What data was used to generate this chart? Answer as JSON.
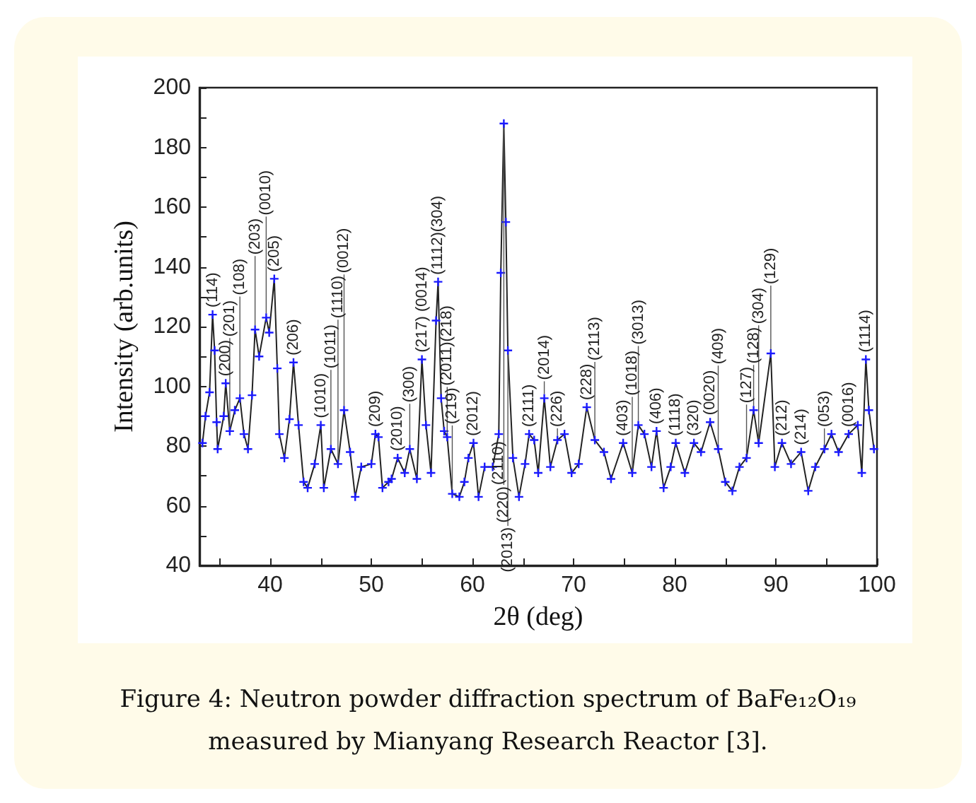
{
  "chart_data": {
    "type": "line",
    "xlabel": "2θ (deg)",
    "ylabel": "Intensity (arb.units)",
    "xlim": [
      33,
      100
    ],
    "ylim": [
      40,
      200
    ],
    "xticks": [
      {
        "value": 35,
        "label": null
      },
      40,
      {
        "value": 45,
        "label": null
      },
      50,
      {
        "value": 55,
        "label": null
      },
      60,
      {
        "value": 65,
        "label": null
      },
      70,
      {
        "value": 75,
        "label": null
      },
      80,
      {
        "value": 85,
        "label": null
      },
      90,
      {
        "value": 95,
        "label": null
      },
      100
    ],
    "yticks": [
      40,
      {
        "value": 50,
        "label": null
      },
      60,
      {
        "value": 70,
        "label": null
      },
      80,
      {
        "value": 90,
        "label": null
      },
      100,
      {
        "value": 110,
        "label": null
      },
      120,
      {
        "value": 130,
        "label": null
      },
      140,
      {
        "value": 150,
        "label": null
      },
      160,
      {
        "value": 170,
        "label": null
      },
      180,
      {
        "value": 190,
        "label": null
      },
      200
    ],
    "grid": false,
    "marker": "cross",
    "line_style": "solid",
    "series": [
      {
        "color": "#1a1aff",
        "x": [
          33.3,
          33.6,
          34.0,
          34.3,
          34.5,
          34.7,
          34.8,
          35.4,
          35.6,
          36.0,
          36.5,
          37.0,
          37.4,
          37.8,
          38.2,
          38.5,
          38.9,
          39.6,
          39.9,
          40.4,
          40.7,
          40.9,
          41.4,
          41.9,
          42.3,
          42.8,
          43.3,
          43.7,
          44.4,
          45.0,
          45.3,
          46.0,
          46.7,
          47.3,
          47.9,
          48.4,
          49.0,
          50.0,
          50.4,
          50.7,
          51.1,
          51.7,
          52.0,
          52.6,
          53.3,
          53.8,
          54.5,
          55.0,
          55.4,
          55.9,
          56.4,
          56.6,
          56.9,
          57.2,
          57.5,
          58.0,
          58.7,
          59.2,
          59.6,
          60.1,
          60.6,
          61.2,
          62.0,
          62.6,
          62.8,
          63.1,
          63.3,
          63.5,
          64.0,
          64.6,
          65.2,
          65.6,
          66.1,
          66.5,
          67.1,
          67.7,
          68.4,
          69.1,
          69.8,
          70.5,
          71.3,
          72.1,
          73.0,
          73.7,
          74.9,
          75.8,
          76.4,
          77.0,
          77.7,
          78.2,
          78.9,
          79.6,
          80.1,
          81.0,
          81.9,
          82.6,
          83.5,
          84.3,
          85.0,
          85.7,
          86.4,
          87.1,
          87.8,
          88.3,
          89.5,
          89.9,
          90.6,
          91.5,
          92.5,
          93.2,
          93.9,
          94.8,
          95.5,
          96.2,
          97.2,
          98.1,
          98.5,
          98.9,
          99.2,
          99.7
        ],
        "values": [
          81,
          90,
          98,
          124,
          112,
          88,
          79,
          90,
          101,
          85,
          92,
          96,
          84,
          79,
          97,
          119,
          110,
          123,
          118,
          136,
          106,
          84,
          76,
          89,
          108,
          87,
          68,
          66,
          74,
          87,
          66,
          79,
          74,
          92,
          78,
          63,
          73,
          74,
          84,
          83,
          66,
          68,
          69,
          76,
          71,
          79,
          69,
          109,
          87,
          71,
          122,
          135,
          96,
          85,
          83,
          64,
          63,
          68,
          76,
          81,
          63,
          73,
          73,
          84,
          138,
          188,
          155,
          112,
          76,
          63,
          74,
          84,
          82,
          71,
          96,
          73,
          82,
          84,
          71,
          74,
          93,
          82,
          78,
          69,
          81,
          71,
          87,
          84,
          73,
          85,
          66,
          73,
          81,
          71,
          81,
          78,
          88,
          79,
          68,
          65,
          73,
          76,
          92,
          81,
          111,
          73,
          81,
          74,
          78,
          65,
          73,
          79,
          84,
          78,
          84,
          87,
          71,
          109,
          92,
          79
        ]
      }
    ],
    "annotations": [
      {
        "text": "(114)",
        "x": 34.3,
        "y": 124
      },
      {
        "text": "(200)",
        "x": 35.6,
        "y": 101
      },
      {
        "text": "(201)",
        "x": 36.0,
        "y": 85
      },
      {
        "text": "(108)",
        "x": 37.0,
        "y": 96
      },
      {
        "text": "(203)",
        "x": 38.5,
        "y": 119
      },
      {
        "text": "(0010)",
        "x": 39.6,
        "y": 123
      },
      {
        "text": "(205)",
        "x": 40.4,
        "y": 136
      },
      {
        "text": "(206)",
        "x": 42.3,
        "y": 108
      },
      {
        "text": "(1010)",
        "x": 45.0,
        "y": 87
      },
      {
        "text": "(1011)",
        "x": 46.0,
        "y": 79
      },
      {
        "text": "(1110)",
        "x": 46.7,
        "y": 74
      },
      {
        "text": "(0012)",
        "x": 47.3,
        "y": 92
      },
      {
        "text": "(209)",
        "x": 50.4,
        "y": 84
      },
      {
        "text": "(2010)",
        "x": 52.6,
        "y": 76
      },
      {
        "text": "(300)",
        "x": 53.8,
        "y": 79
      },
      {
        "text": "(217) (0014)",
        "x": 55.0,
        "y": 109
      },
      {
        "text": "(1112)(304)",
        "x": 56.6,
        "y": 135
      },
      {
        "text": "(219)",
        "x": 58.0,
        "y": 64
      },
      {
        "text": "(2011)(218)",
        "x": 57.5,
        "y": 83
      },
      {
        "text": "(2012)",
        "x": 60.1,
        "y": 81
      },
      {
        "text": "(2110)",
        "x": 62.6,
        "y": 84
      },
      {
        "text": "(220)",
        "x": 63.1,
        "y": 188
      },
      {
        "text": "(2013)",
        "x": 63.5,
        "y": 112
      },
      {
        "text": "(2111)",
        "x": 65.6,
        "y": 84
      },
      {
        "text": "(2014)",
        "x": 67.1,
        "y": 96
      },
      {
        "text": "(226)",
        "x": 68.4,
        "y": 82
      },
      {
        "text": "(228)",
        "x": 71.3,
        "y": 93
      },
      {
        "text": "(2113)",
        "x": 72.1,
        "y": 82
      },
      {
        "text": "(403)",
        "x": 74.9,
        "y": 81
      },
      {
        "text": "(1018)",
        "x": 75.8,
        "y": 71
      },
      {
        "text": "(3013)",
        "x": 76.4,
        "y": 87
      },
      {
        "text": "(406)",
        "x": 78.2,
        "y": 85
      },
      {
        "text": "(1118)",
        "x": 80.1,
        "y": 81
      },
      {
        "text": "(320)",
        "x": 81.9,
        "y": 81
      },
      {
        "text": "(0020)",
        "x": 83.5,
        "y": 88
      },
      {
        "text": "(409)",
        "x": 84.3,
        "y": 79
      },
      {
        "text": "(127)",
        "x": 87.1,
        "y": 76
      },
      {
        "text": "(128)",
        "x": 87.8,
        "y": 92
      },
      {
        "text": "(304)",
        "x": 88.3,
        "y": 81
      },
      {
        "text": "(129)",
        "x": 89.5,
        "y": 111
      },
      {
        "text": "(212)",
        "x": 90.6,
        "y": 81
      },
      {
        "text": "(214)",
        "x": 92.5,
        "y": 78
      },
      {
        "text": "(053)",
        "x": 94.8,
        "y": 79
      },
      {
        "text": "(0016)",
        "x": 97.2,
        "y": 84
      },
      {
        "text": "(1114)",
        "x": 98.9,
        "y": 109
      },
      "Figure 4: Neutron powder diffraction spectrum of BaFe₁₂O₁₉ measured by Mianyang Research Reactor [3]."
    ]
  }
}
